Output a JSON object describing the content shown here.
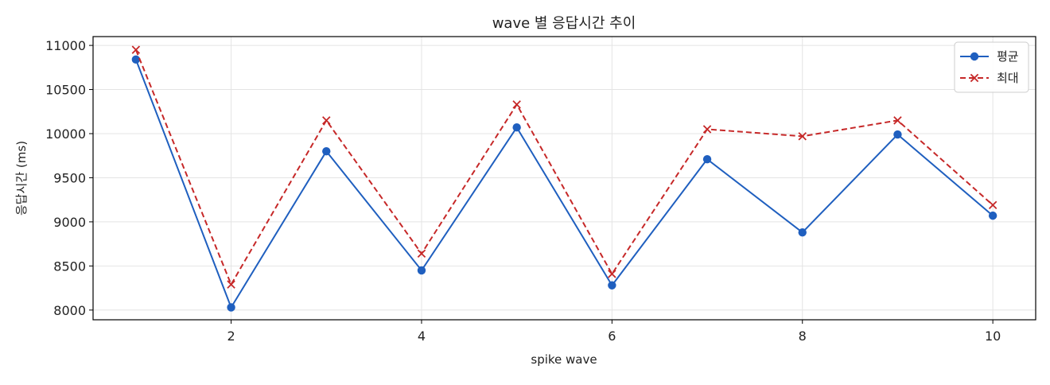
{
  "chart_data": {
    "type": "line",
    "title": "wave 별 응답시간 추이",
    "xlabel": "spike wave",
    "ylabel": "응답시간 (ms)",
    "x": [
      1,
      2,
      3,
      4,
      5,
      6,
      7,
      8,
      9,
      10
    ],
    "xlim": [
      0.55,
      10.45
    ],
    "ylim": [
      7890,
      11100
    ],
    "xticks": [
      2,
      4,
      6,
      8,
      10
    ],
    "yticks": [
      8000,
      8500,
      9000,
      9500,
      10000,
      10500,
      11000
    ],
    "grid": true,
    "legend_position": "top-right",
    "series": [
      {
        "name": "평균",
        "color": "#1f5fbf",
        "marker": "circle",
        "linestyle": "solid",
        "values": [
          10840,
          8030,
          9800,
          8450,
          10070,
          8280,
          9710,
          8880,
          9990,
          9070
        ]
      },
      {
        "name": "최대",
        "color": "#c62828",
        "marker": "x",
        "linestyle": "dashed",
        "values": [
          10950,
          8290,
          10150,
          8640,
          10330,
          8410,
          10050,
          9970,
          10150,
          9190
        ]
      }
    ]
  }
}
